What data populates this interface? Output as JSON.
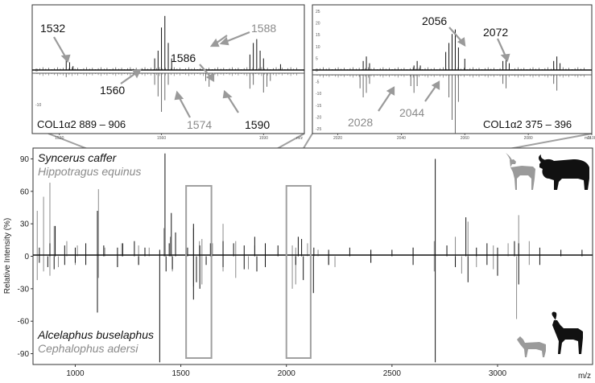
{
  "chart_data": [
    {
      "type": "line",
      "panel": "main",
      "xlabel": "m/z",
      "ylabel": "Relative Intensity (%)",
      "xlim": [
        800,
        3450
      ],
      "ylim": [
        -100,
        100
      ],
      "x_ticks": [
        1000,
        1500,
        2000,
        2500,
        3000
      ],
      "y_ticks": [
        90,
        60,
        30,
        0,
        -30,
        -60,
        -90
      ],
      "legend_top": [
        {
          "name": "Syncerus caffer",
          "color": "#111111"
        },
        {
          "name": "Hippotragus equinus",
          "color": "#8a8a8a"
        }
      ],
      "legend_bottom": [
        {
          "name": "Alcelaphus buselaphus",
          "color": "#111111"
        },
        {
          "name": "Cephalophus adersi",
          "color": "#8a8a8a"
        }
      ],
      "zoom_ranges": [
        [
          1525,
          1645
        ],
        [
          2000,
          2115
        ]
      ],
      "series": [
        {
          "name": "Syncerus caffer",
          "side": "up",
          "color": "#111111",
          "x": [
            830,
            880,
            905,
            950,
            1000,
            1050,
            1105,
            1135,
            1200,
            1225,
            1280,
            1330,
            1400,
            1425,
            1445,
            1455,
            1475,
            1532,
            1560,
            1590,
            1640,
            1700,
            1750,
            1800,
            1850,
            1900,
            1960,
            2000,
            2056,
            2072,
            2130,
            2200,
            2300,
            2400,
            2500,
            2600,
            2705,
            2760,
            2850,
            2900,
            2950,
            3000,
            3080,
            3100,
            3200,
            3300,
            3400
          ],
          "y": [
            8,
            12,
            28,
            10,
            8,
            12,
            42,
            10,
            8,
            12,
            14,
            8,
            6,
            95,
            12,
            40,
            22,
            8,
            30,
            10,
            12,
            14,
            12,
            10,
            18,
            12,
            10,
            10,
            18,
            16,
            8,
            6,
            8,
            6,
            6,
            8,
            90,
            10,
            36,
            8,
            12,
            8,
            14,
            12,
            8,
            6,
            6
          ]
        },
        {
          "name": "Hippotragus equinus",
          "side": "up",
          "color": "#8a8a8a",
          "x": [
            820,
            850,
            880,
            900,
            960,
            1010,
            1110,
            1140,
            1220,
            1300,
            1350,
            1420,
            1450,
            1560,
            1588,
            1600,
            1650,
            1700,
            1760,
            1850,
            2028,
            2044,
            2100,
            2150,
            2400,
            2600,
            2700,
            2800,
            2860,
            2980,
            3050,
            3100,
            3150
          ],
          "y": [
            42,
            55,
            68,
            28,
            14,
            10,
            62,
            8,
            12,
            10,
            8,
            26,
            18,
            26,
            14,
            16,
            12,
            30,
            14,
            10,
            10,
            8,
            12,
            6,
            6,
            8,
            14,
            18,
            32,
            10,
            12,
            38,
            14
          ]
        },
        {
          "name": "Alcelaphus buselaphus",
          "side": "down",
          "color": "#111111",
          "x": [
            830,
            870,
            900,
            950,
            1000,
            1050,
            1105,
            1200,
            1300,
            1400,
            1430,
            1460,
            1560,
            1574,
            1590,
            1620,
            1700,
            1800,
            1860,
            1900,
            2000,
            2044,
            2080,
            2128,
            2200,
            2400,
            2600,
            2705,
            2800,
            2860,
            2950,
            3000,
            3100,
            3200
          ],
          "y": [
            6,
            10,
            12,
            8,
            6,
            8,
            52,
            10,
            8,
            98,
            14,
            12,
            40,
            24,
            30,
            8,
            10,
            12,
            14,
            10,
            14,
            8,
            22,
            34,
            8,
            6,
            8,
            98,
            10,
            24,
            8,
            18,
            26,
            8
          ]
        },
        {
          "name": "Cephalophus adersi",
          "side": "down",
          "color": "#8a8a8a",
          "x": [
            820,
            850,
            880,
            920,
            1000,
            1110,
            1200,
            1300,
            1460,
            1560,
            1574,
            1600,
            1700,
            1760,
            1820,
            1900,
            2028,
            2044,
            2200,
            2230,
            2400,
            2700,
            2830,
            2900,
            2980,
            3090,
            3150
          ],
          "y": [
            22,
            14,
            18,
            10,
            8,
            20,
            10,
            8,
            14,
            28,
            18,
            26,
            14,
            20,
            12,
            8,
            30,
            26,
            8,
            10,
            6,
            14,
            16,
            10,
            12,
            58,
            8
          ]
        }
      ]
    },
    {
      "type": "line",
      "panel": "inset-left",
      "title": "COL1α2 889 – 906",
      "xlim": [
        1522,
        1602
      ],
      "x_ticks": [
        1530,
        1560,
        1590,
        1620
      ],
      "y_ticks": [
        0,
        -10
      ],
      "x_axis_unit": "m/z",
      "peak_labels": [
        {
          "text": "1532",
          "tone": "dark",
          "mz": 1532
        },
        {
          "text": "1560",
          "tone": "dark",
          "mz": 1560
        },
        {
          "text": "1586",
          "tone": "dark",
          "mz": 1586
        },
        {
          "text": "1588",
          "tone": "grey",
          "mz": 1588
        },
        {
          "text": "1574",
          "tone": "grey",
          "mz": 1574
        },
        {
          "text": "1590",
          "tone": "dark",
          "mz": 1590
        }
      ],
      "series": [
        {
          "name": "top",
          "side": "up",
          "x": [
            1532,
            1533,
            1534,
            1558,
            1559,
            1560,
            1561,
            1562,
            1563,
            1586,
            1587,
            1588,
            1589,
            1590,
            1595
          ],
          "y": [
            5,
            4,
            2,
            6,
            10,
            22,
            28,
            14,
            6,
            8,
            14,
            16,
            10,
            6,
            3
          ]
        },
        {
          "name": "bottom",
          "side": "down",
          "x": [
            1532,
            1558,
            1559,
            1560,
            1561,
            1562,
            1573,
            1574,
            1575,
            1586,
            1587,
            1590,
            1591,
            1592
          ],
          "y": [
            2,
            6,
            12,
            20,
            14,
            6,
            4,
            7,
            4,
            8,
            6,
            10,
            7,
            4
          ]
        }
      ]
    },
    {
      "type": "line",
      "panel": "inset-right",
      "title": "COL1α2 375 – 396",
      "xlim": [
        2012,
        2100
      ],
      "x_ticks": [
        2020,
        2040,
        2060,
        2080,
        2100
      ],
      "y_ticks": [
        25,
        20,
        15,
        10,
        5,
        0,
        -5,
        -10,
        -15,
        -20,
        -25
      ],
      "x_axis_unit": "m/z",
      "peak_labels": [
        {
          "text": "2056",
          "tone": "dark",
          "mz": 2056
        },
        {
          "text": "2072",
          "tone": "dark",
          "mz": 2072
        },
        {
          "text": "2028",
          "tone": "grey",
          "mz": 2028
        },
        {
          "text": "2044",
          "tone": "grey",
          "mz": 2044
        }
      ],
      "series": [
        {
          "name": "top",
          "side": "up",
          "x": [
            2028,
            2029,
            2030,
            2044,
            2045,
            2046,
            2054,
            2055,
            2056,
            2057,
            2058,
            2060,
            2072,
            2073,
            2074,
            2088,
            2089,
            2090
          ],
          "y": [
            4,
            6,
            3,
            2,
            4,
            2,
            8,
            12,
            16,
            18,
            10,
            5,
            4,
            6,
            3,
            4,
            6,
            3
          ]
        },
        {
          "name": "bottom",
          "side": "down",
          "x": [
            2027,
            2028,
            2029,
            2030,
            2043,
            2044,
            2045,
            2055,
            2056,
            2057,
            2058,
            2072,
            2073,
            2088,
            2089
          ],
          "y": [
            6,
            10,
            8,
            4,
            5,
            8,
            5,
            10,
            20,
            26,
            12,
            4,
            6,
            4,
            7
          ]
        }
      ]
    }
  ]
}
